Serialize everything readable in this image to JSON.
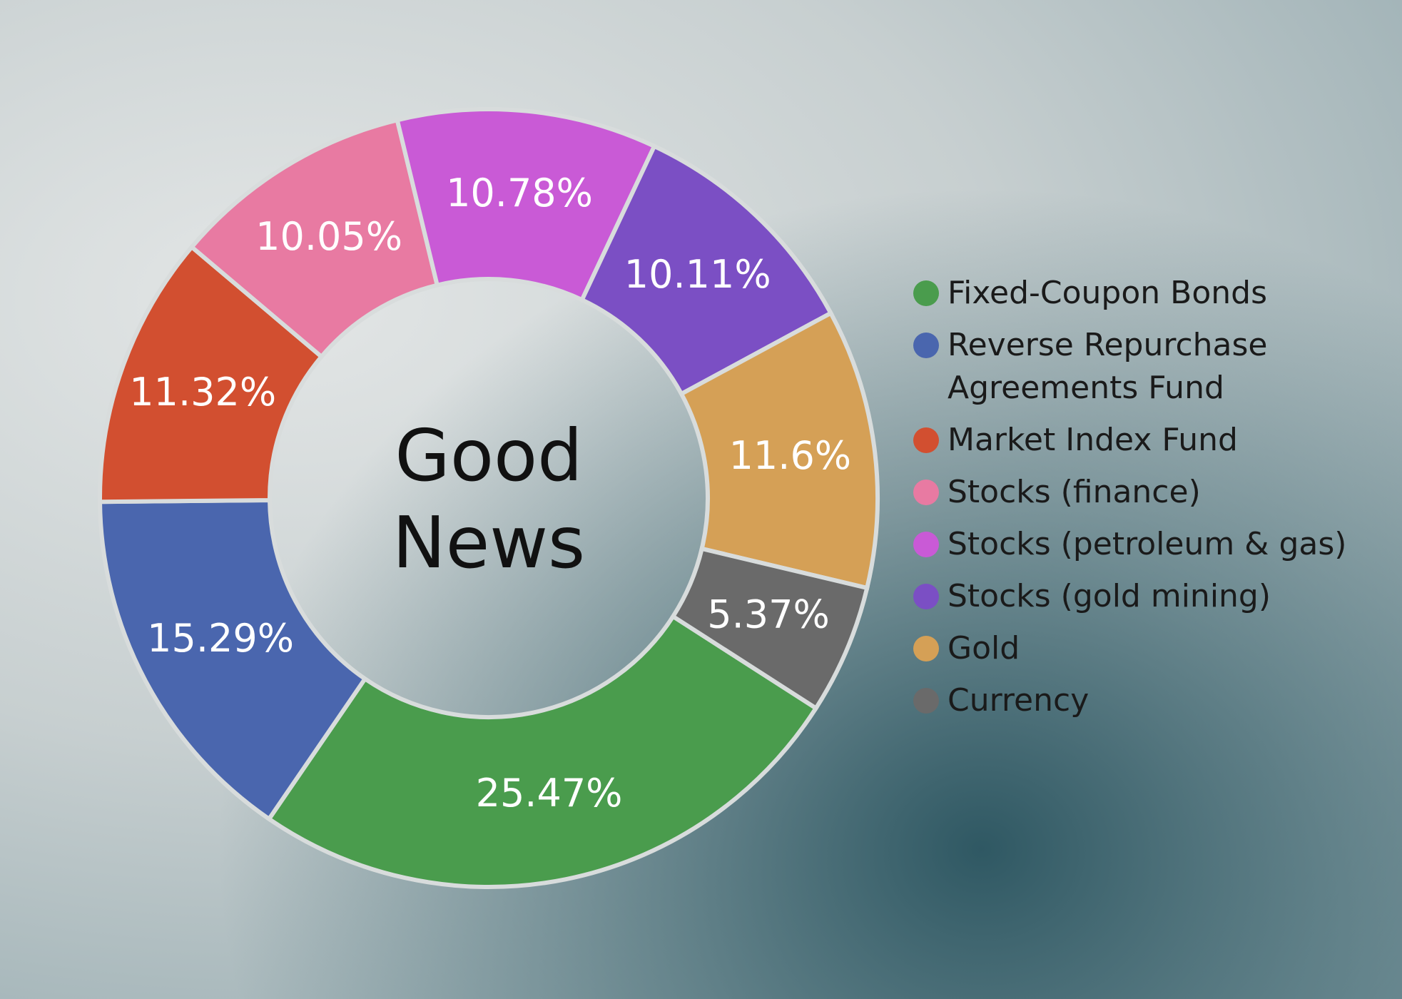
{
  "chart_data": {
    "type": "donut",
    "title": "Good News",
    "categories": [
      "Fixed-Coupon Bonds",
      "Reverse Repurchase Agreements Fund",
      "Market Index Fund",
      "Stocks (finance)",
      "Stocks (petroleum & gas)",
      "Stocks (gold mining)",
      "Gold",
      "Currency"
    ],
    "values": [
      25.47,
      15.29,
      11.32,
      10.05,
      10.78,
      10.11,
      11.6,
      5.37
    ],
    "value_labels": [
      "25.47%",
      "15.29%",
      "11.32%",
      "10.05%",
      "10.78%",
      "10.11%",
      "11.6%",
      "5.37%"
    ],
    "colors": [
      "#4a9c4d",
      "#4a66ae",
      "#d24f30",
      "#e87aa2",
      "#c95ad6",
      "#7b4fc4",
      "#d5a056",
      "#6a6a6a"
    ]
  }
}
